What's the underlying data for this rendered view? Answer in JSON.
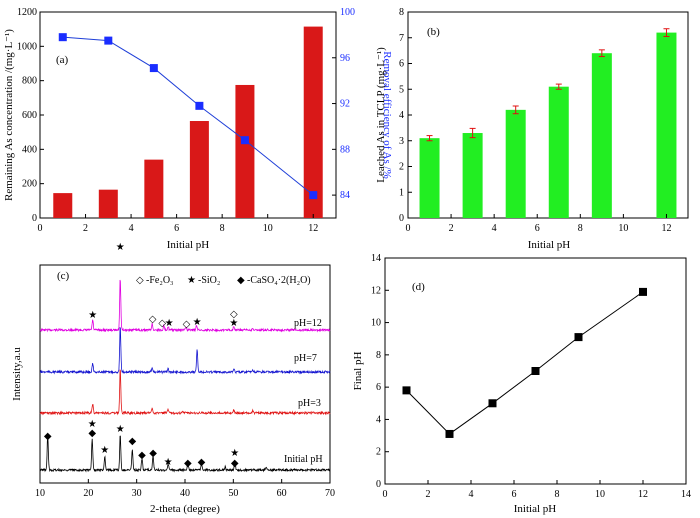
{
  "colors": {
    "bar_red": "#d91818",
    "bar_green": "#22ee22",
    "line_blue": "#1f3fd8",
    "square_blue": "#1a2dff",
    "error_red": "#e01010",
    "xrd_magenta": "#e000e0",
    "xrd_blue": "#1515d0",
    "xrd_red": "#e01515",
    "xrd_black": "#000000"
  },
  "chart_data": [
    {
      "id": "a",
      "type": "bar",
      "panel_label": "(a)",
      "xlabel": "Initial pH",
      "ylabel": "Remaining As concentration /(mg·L⁻¹)",
      "y2label": "Removal efficiency of As /%",
      "xlim": [
        0,
        13
      ],
      "ylim": [
        0,
        1200
      ],
      "y2lim": [
        82,
        100
      ],
      "xticks": [
        "0",
        "2",
        "4",
        "6",
        "8",
        "10",
        "12"
      ],
      "yticks": [
        "0",
        "200",
        "400",
        "600",
        "800",
        "1000",
        "1200"
      ],
      "y2ticks": [
        "84",
        "88",
        "92",
        "96",
        "100"
      ],
      "x": [
        1,
        3,
        5,
        7,
        9,
        12
      ],
      "series": [
        {
          "kind": "bar",
          "values": [
            145,
            165,
            340,
            565,
            775,
            1115
          ]
        },
        {
          "kind": "line",
          "values": [
            97.8,
            97.5,
            95.1,
            91.8,
            88.8,
            84.0
          ]
        }
      ]
    },
    {
      "id": "b",
      "type": "bar",
      "panel_label": "(b)",
      "xlabel": "Initial pH",
      "ylabel": "Leached As in TCLP (mg·L⁻¹)",
      "xlim": [
        0,
        13
      ],
      "ylim": [
        0,
        8
      ],
      "xticks": [
        "0",
        "2",
        "4",
        "6",
        "8",
        "10",
        "12"
      ],
      "yticks": [
        "0",
        "1",
        "2",
        "3",
        "4",
        "5",
        "6",
        "7",
        "8"
      ],
      "x": [
        1,
        3,
        5,
        7,
        9,
        12
      ],
      "values": [
        3.1,
        3.3,
        4.2,
        5.1,
        6.4,
        7.2
      ],
      "errors": [
        0.1,
        0.18,
        0.15,
        0.1,
        0.13,
        0.15
      ]
    },
    {
      "id": "c",
      "type": "line",
      "panel_label": "(c)",
      "xlabel": "2-theta (degree)",
      "ylabel": "Intensity,a.u",
      "xlim": [
        10,
        70
      ],
      "xticks": [
        "10",
        "20",
        "30",
        "40",
        "50",
        "60",
        "70"
      ],
      "legend": {
        "fe2o3": "-Fe₂O₃",
        "sio2": "-SiO₂",
        "caso4": "-CaSO₄·2(H₂O)"
      },
      "series": [
        {
          "name": "pH=12"
        },
        {
          "name": "pH=7"
        },
        {
          "name": "pH=3"
        },
        {
          "name": "Initial pH"
        }
      ]
    },
    {
      "id": "d",
      "type": "line",
      "panel_label": "(d)",
      "xlabel": "Initial pH",
      "ylabel": "Final pH",
      "xlim": [
        0,
        14
      ],
      "ylim": [
        0,
        14
      ],
      "xticks": [
        "0",
        "2",
        "4",
        "6",
        "8",
        "10",
        "12",
        "14"
      ],
      "yticks": [
        "0",
        "2",
        "4",
        "6",
        "8",
        "10",
        "12",
        "14"
      ],
      "x": [
        1,
        3,
        5,
        7,
        9,
        12
      ],
      "values": [
        5.8,
        3.1,
        5.0,
        7.0,
        9.1,
        11.9
      ]
    }
  ]
}
